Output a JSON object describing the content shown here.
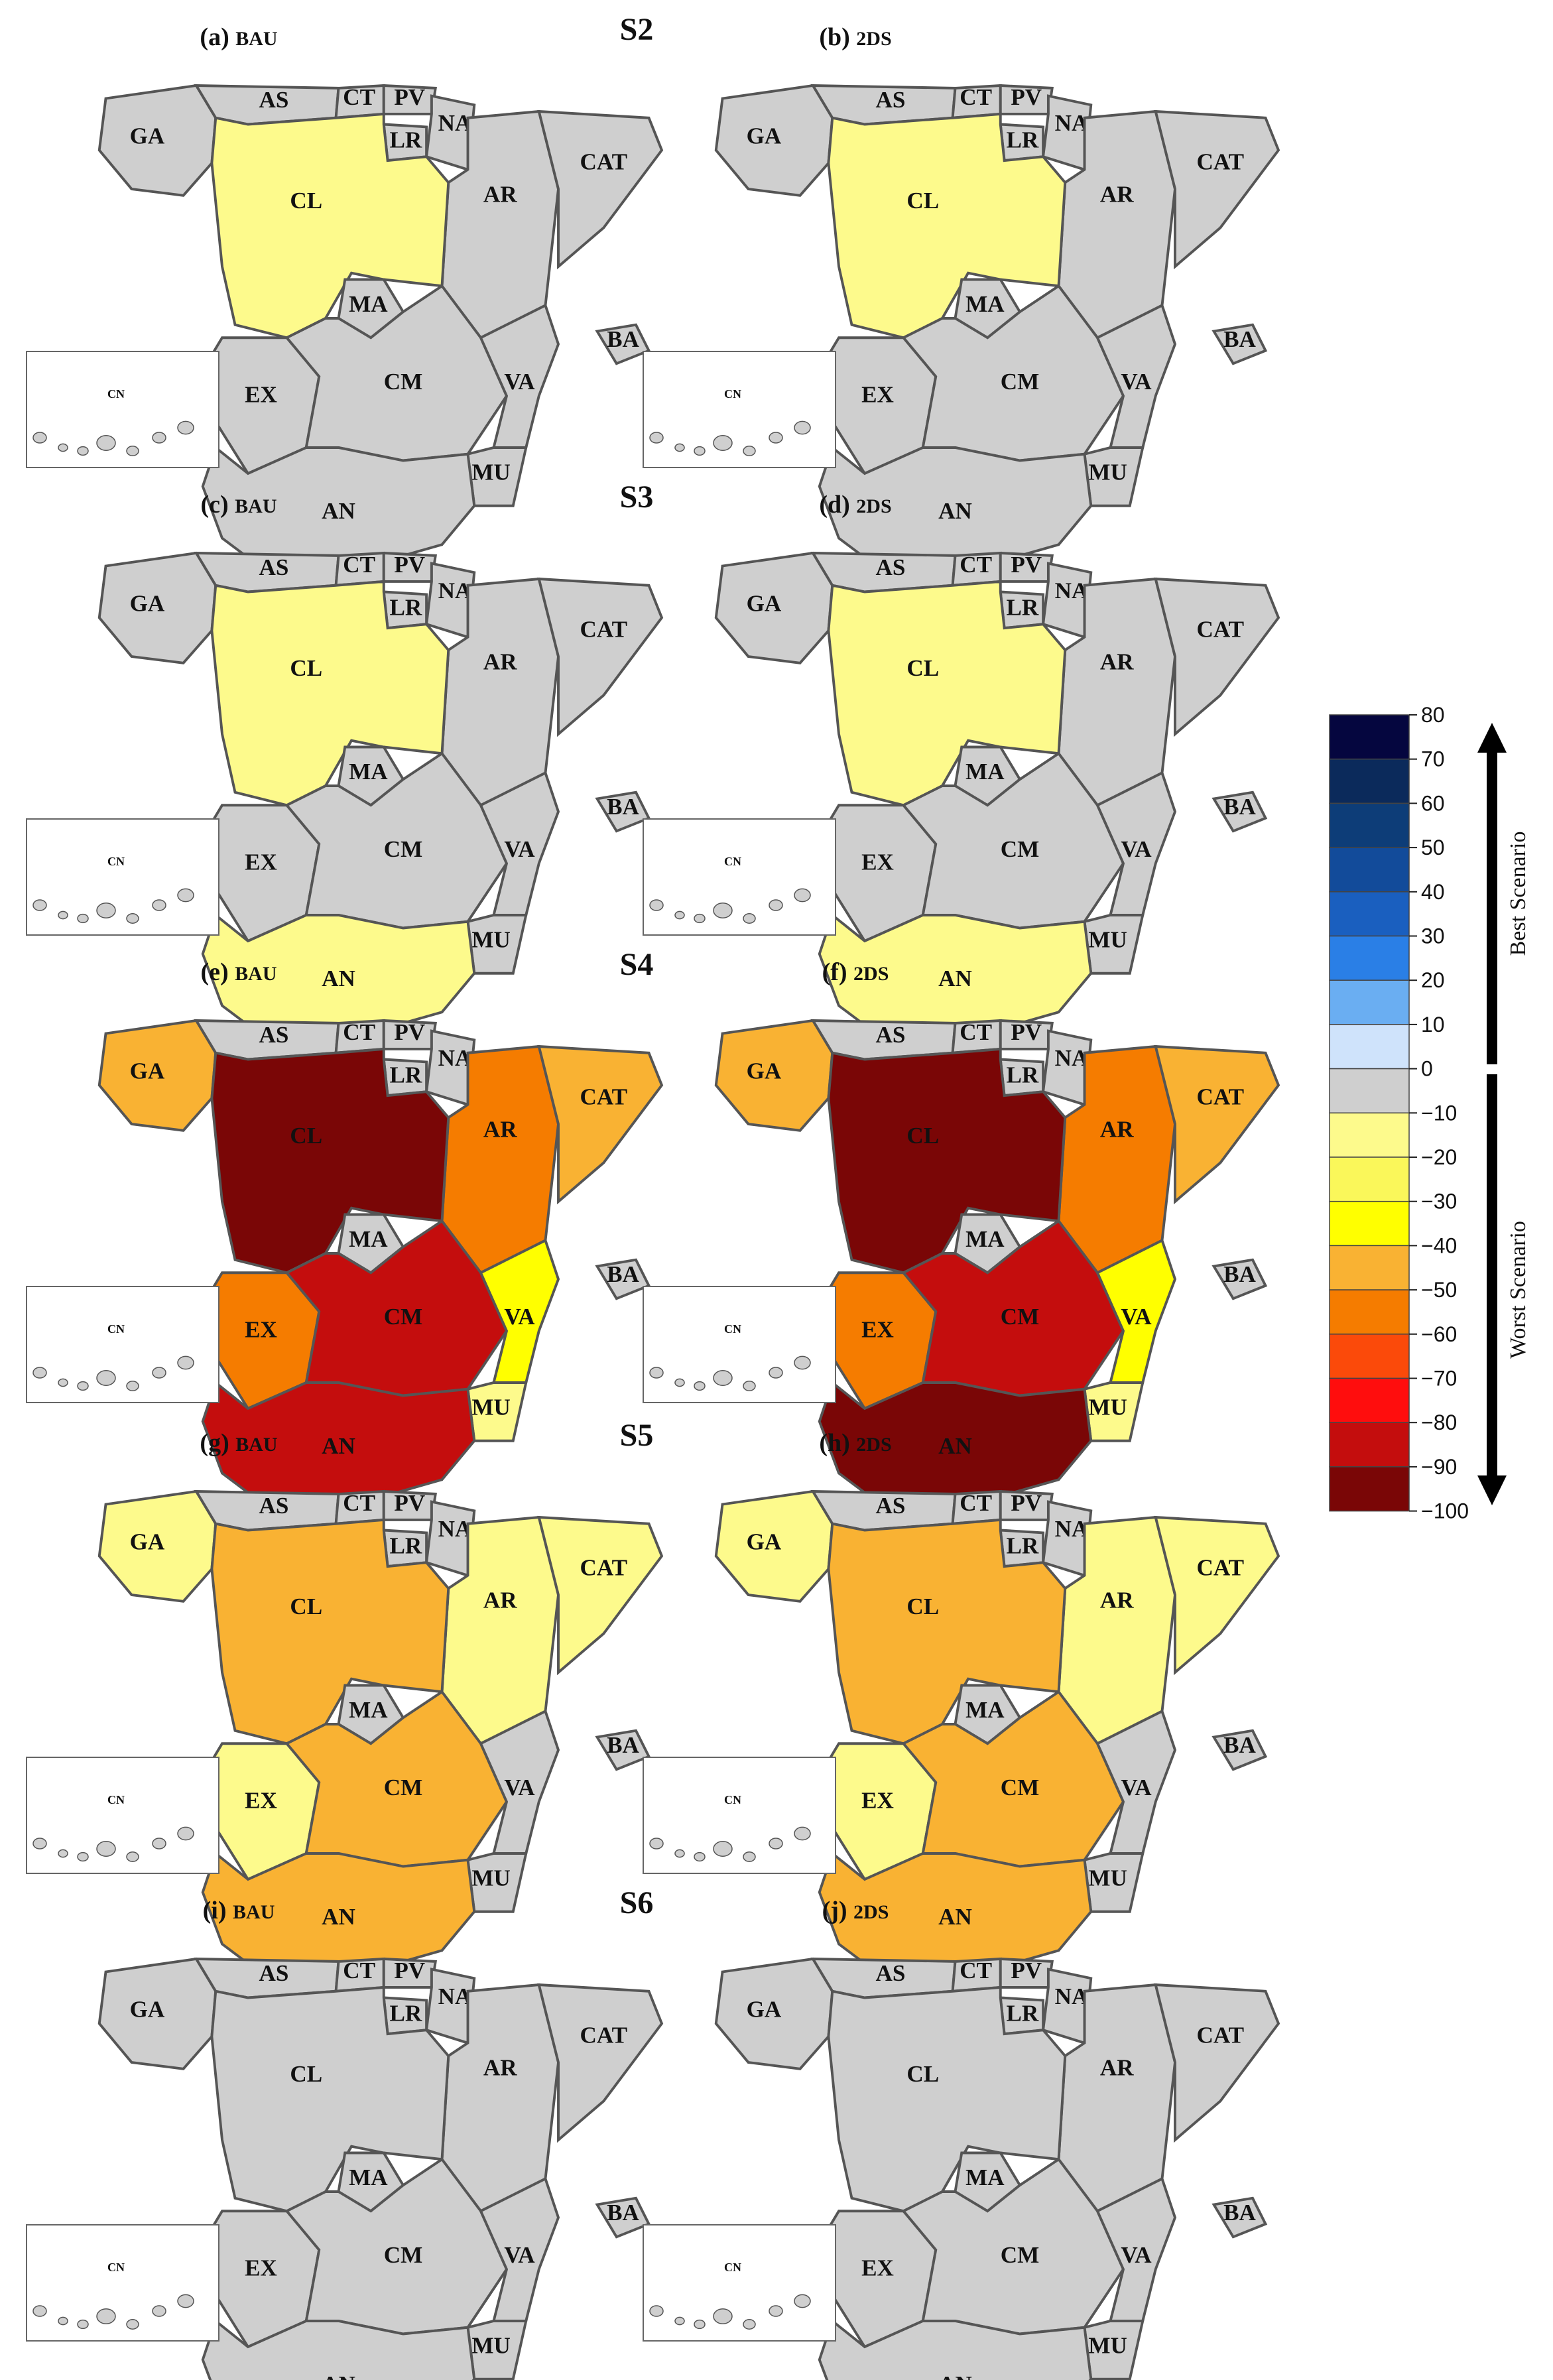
{
  "figure": {
    "rows": [
      {
        "scenario": "S2",
        "panels": [
          {
            "label": "(a)",
            "case": "BAU",
            "values": {
              "GA": 0,
              "AS": 0,
              "CT": 0,
              "PV": 0,
              "NA": 0,
              "LR": 0,
              "AR": 0,
              "CAT": 0,
              "CL": -10,
              "MA": 0,
              "EX": 0,
              "CM": 0,
              "VA": 0,
              "BA": 0,
              "AN": 0,
              "MU": 0,
              "CN": 0
            }
          },
          {
            "label": "(b)",
            "case": "2DS",
            "values": {
              "GA": 0,
              "AS": 0,
              "CT": 0,
              "PV": 0,
              "NA": 0,
              "LR": 0,
              "AR": 0,
              "CAT": 0,
              "CL": -10,
              "MA": 0,
              "EX": 0,
              "CM": 0,
              "VA": 0,
              "BA": 0,
              "AN": 0,
              "MU": 0,
              "CN": 0
            }
          }
        ]
      },
      {
        "scenario": "S3",
        "panels": [
          {
            "label": "(c)",
            "case": "BAU",
            "values": {
              "GA": 0,
              "AS": 0,
              "CT": 0,
              "PV": 0,
              "NA": 0,
              "LR": 0,
              "AR": 0,
              "CAT": 0,
              "CL": -10,
              "MA": 0,
              "EX": 0,
              "CM": 0,
              "VA": 0,
              "BA": 0,
              "AN": -10,
              "MU": 0,
              "CN": 0
            }
          },
          {
            "label": "(d)",
            "case": "2DS",
            "values": {
              "GA": 0,
              "AS": 0,
              "CT": 0,
              "PV": 0,
              "NA": 0,
              "LR": 0,
              "AR": 0,
              "CAT": 0,
              "CL": -10,
              "MA": 0,
              "EX": 0,
              "CM": 0,
              "VA": 0,
              "BA": 0,
              "AN": -10,
              "MU": 0,
              "CN": 0
            }
          }
        ]
      },
      {
        "scenario": "S4",
        "panels": [
          {
            "label": "(e)",
            "case": "BAU",
            "values": {
              "GA": -40,
              "AS": 0,
              "CT": 0,
              "PV": 0,
              "NA": 0,
              "LR": 0,
              "AR": -50,
              "CAT": -40,
              "CL": -90,
              "MA": 0,
              "EX": -50,
              "CM": -80,
              "VA": -30,
              "BA": 0,
              "AN": -80,
              "MU": -10,
              "CN": 0
            }
          },
          {
            "label": "(f)",
            "case": "2DS",
            "values": {
              "GA": -40,
              "AS": 0,
              "CT": 0,
              "PV": 0,
              "NA": 0,
              "LR": 0,
              "AR": -50,
              "CAT": -40,
              "CL": -90,
              "MA": 0,
              "EX": -50,
              "CM": -80,
              "VA": -30,
              "BA": 0,
              "AN": -90,
              "MU": -10,
              "CN": 0
            }
          }
        ]
      },
      {
        "scenario": "S5",
        "panels": [
          {
            "label": "(g)",
            "case": "BAU",
            "values": {
              "GA": -10,
              "AS": 0,
              "CT": 0,
              "PV": 0,
              "NA": 0,
              "LR": 0,
              "AR": -10,
              "CAT": -10,
              "CL": -40,
              "MA": 0,
              "EX": -10,
              "CM": -40,
              "VA": 0,
              "BA": 0,
              "AN": -40,
              "MU": 0,
              "CN": 0
            }
          },
          {
            "label": "(h)",
            "case": "2DS",
            "values": {
              "GA": -10,
              "AS": 0,
              "CT": 0,
              "PV": 0,
              "NA": 0,
              "LR": 0,
              "AR": -10,
              "CAT": -10,
              "CL": -40,
              "MA": 0,
              "EX": -10,
              "CM": -40,
              "VA": 0,
              "BA": 0,
              "AN": -40,
              "MU": 0,
              "CN": 0
            }
          }
        ]
      },
      {
        "scenario": "S6",
        "panels": [
          {
            "label": "(i)",
            "case": "BAU",
            "values": {
              "GA": 0,
              "AS": 0,
              "CT": 0,
              "PV": 0,
              "NA": 0,
              "LR": 0,
              "AR": 0,
              "CAT": 0,
              "CL": 0,
              "MA": 0,
              "EX": 0,
              "CM": 0,
              "VA": 0,
              "BA": 0,
              "AN": 0,
              "MU": 0,
              "CN": 0
            }
          },
          {
            "label": "(j)",
            "case": "2DS",
            "values": {
              "GA": 0,
              "AS": 0,
              "CT": 0,
              "PV": 0,
              "NA": 0,
              "LR": 0,
              "AR": 0,
              "CAT": 0,
              "CL": 0,
              "MA": 0,
              "EX": 0,
              "CM": 0,
              "VA": 0,
              "BA": 0,
              "AN": 0,
              "MU": 0,
              "CN": 0
            }
          }
        ]
      }
    ]
  },
  "legend": {
    "ticks": [
      "80",
      "70",
      "60",
      "50",
      "40",
      "30",
      "20",
      "10",
      "0",
      "−10",
      "−20",
      "−30",
      "−40",
      "−50",
      "−60",
      "−70",
      "−80",
      "−90",
      "−100"
    ],
    "bins": [
      {
        "upper": 80,
        "color": "#05063f"
      },
      {
        "upper": 70,
        "color": "#0b2a5b"
      },
      {
        "upper": 60,
        "color": "#0d3d78"
      },
      {
        "upper": 50,
        "color": "#124b9a"
      },
      {
        "upper": 40,
        "color": "#1a5fbf"
      },
      {
        "upper": 30,
        "color": "#2a7fe6"
      },
      {
        "upper": 20,
        "color": "#6aaef2"
      },
      {
        "upper": 10,
        "color": "#cfe3fb"
      },
      {
        "upper": 0,
        "color": "#cfcfcf"
      },
      {
        "upper": -10,
        "color": "#fdfa8c"
      },
      {
        "upper": -20,
        "color": "#faf75a"
      },
      {
        "upper": -30,
        "color": "#ffff00"
      },
      {
        "upper": -40,
        "color": "#f9b233"
      },
      {
        "upper": -50,
        "color": "#f57c00"
      },
      {
        "upper": -60,
        "color": "#fb4a0a"
      },
      {
        "upper": -70,
        "color": "#ff0d0d"
      },
      {
        "upper": -80,
        "color": "#c40d0d"
      },
      {
        "upper": -90,
        "color": "#7a0606"
      }
    ],
    "best_label": "Best Scenario",
    "worst_label": "Worst Scenario"
  }
}
